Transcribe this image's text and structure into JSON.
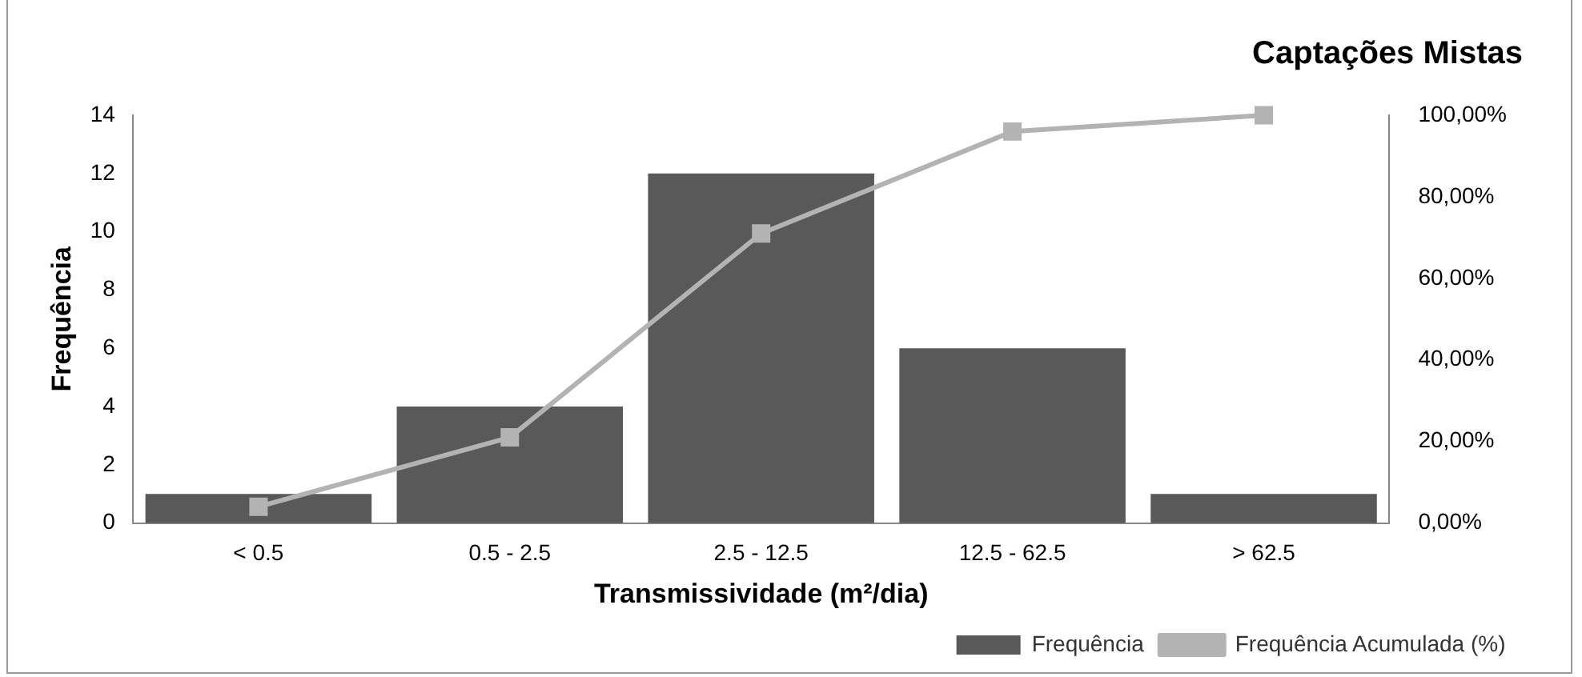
{
  "chart_data": {
    "type": "bar",
    "title": "Captações Mistas",
    "xlabel": "Transmissividade (m²/dia)",
    "ylabel": "Frequência",
    "categories": [
      "< 0.5",
      "0.5 - 2.5",
      "2.5 - 12.5",
      "12.5 - 62.5",
      "> 62.5"
    ],
    "series": [
      {
        "name": "Frequência",
        "color": "#595959",
        "values": [
          1,
          4,
          12,
          6,
          1
        ]
      },
      {
        "name": "Frequência Acumulada (%)",
        "type": "line",
        "axis": "y2",
        "marker": "square",
        "color": "#b3b3b3",
        "values": [
          4,
          21,
          71,
          96,
          100
        ]
      }
    ],
    "ylim": [
      0,
      14
    ],
    "yticks": [
      0,
      2,
      4,
      6,
      8,
      10,
      12,
      14
    ],
    "y2lim": [
      0,
      100
    ],
    "y2ticks": [
      {
        "value": 0,
        "label": "0,00%"
      },
      {
        "value": 20,
        "label": "20,00%"
      },
      {
        "value": 40,
        "label": "40,00%"
      },
      {
        "value": 60,
        "label": "60,00%"
      },
      {
        "value": 80,
        "label": "80,00%"
      },
      {
        "value": 100,
        "label": "100,00%"
      }
    ],
    "grid": false,
    "legend": "bottom right"
  }
}
